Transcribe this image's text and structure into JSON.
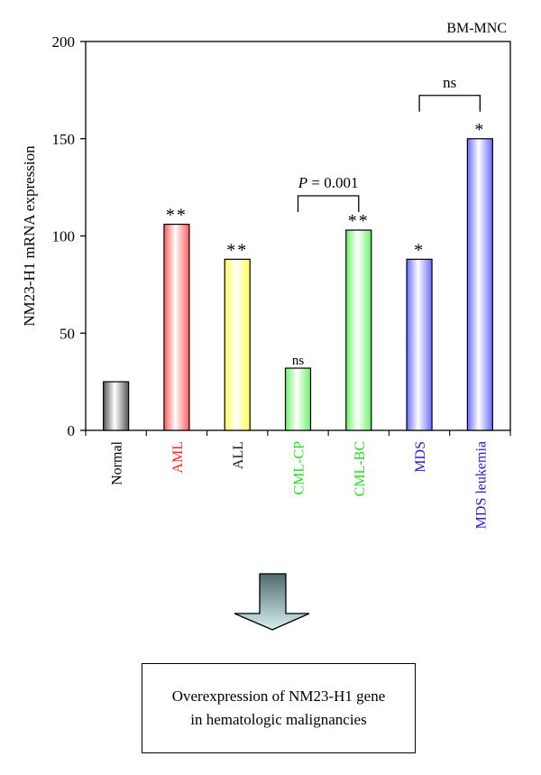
{
  "chart_data": {
    "type": "bar",
    "panel_label": "BM-MNC",
    "ylabel": "NM23-H1 mRNA expression",
    "xlabel": "",
    "ylim": [
      0,
      200
    ],
    "yticks": [
      0,
      50,
      100,
      150,
      200
    ],
    "grid": false,
    "legend": "none",
    "categories": [
      "Normal",
      "AML",
      "ALL",
      "CML-CP",
      "CML-BC",
      "MDS",
      "MDS leukemia"
    ],
    "values": [
      25,
      106,
      88,
      32,
      103,
      88,
      150
    ],
    "category_colors": [
      "#000000",
      "#ff2020",
      "#1a1a1a",
      "#22dd22",
      "#22dd22",
      "#2020cc",
      "#2020cc"
    ],
    "bar_colors": [
      "#555555",
      "#ff5a5a",
      "#ffff55",
      "#6cf06c",
      "#6cf06c",
      "#6a6aff",
      "#6a6aff"
    ],
    "significance": [
      "",
      "**",
      "**",
      "ns",
      "**",
      "*",
      "*"
    ],
    "comparisons": [
      {
        "from": "CML-CP",
        "to": "CML-BC",
        "label_italic": "P",
        "label_rest": " = 0.001"
      },
      {
        "from": "MDS",
        "to": "MDS leukemia",
        "label_italic": "",
        "label_rest": "ns"
      }
    ]
  },
  "conclusion": {
    "line1": "Overexpression of NM23-H1 gene",
    "line2": "in hematologic malignancies"
  },
  "arrow": {
    "direction": "down",
    "color_top": "#4d6b6b",
    "color_bottom": "#d9f0f0"
  }
}
